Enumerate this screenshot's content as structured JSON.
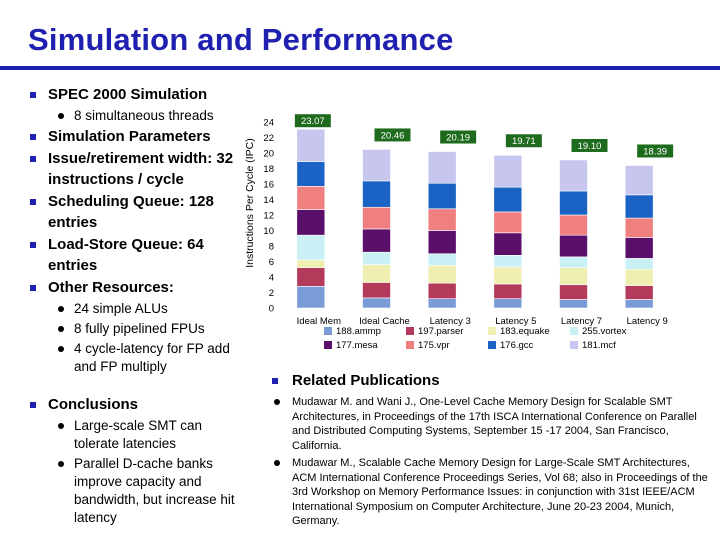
{
  "slide": {
    "title": "Simulation and Performance"
  },
  "left_bullets": [
    {
      "level": 1,
      "text": "SPEC 2000 Simulation"
    },
    {
      "level": 2,
      "text": "8 simultaneous threads"
    },
    {
      "level": 1,
      "text": "Simulation Parameters"
    },
    {
      "level": 1,
      "text": "Issue/retirement width: 32 instructions / cycle"
    },
    {
      "level": 1,
      "text": "Scheduling Queue: 128 entries"
    },
    {
      "level": 1,
      "text": "Load-Store Queue: 64 entries"
    },
    {
      "level": 1,
      "text": "Other Resources:"
    },
    {
      "level": 2,
      "text": "24 simple ALUs"
    },
    {
      "level": 2,
      "text": "8 fully pipelined FPUs"
    },
    {
      "level": 2,
      "text": "4 cycle-latency for FP add and FP multiply"
    },
    {
      "level": 1,
      "text": "Conclusions"
    },
    {
      "level": 2,
      "text": "Large-scale SMT can tolerate latencies"
    },
    {
      "level": 2,
      "text": "Parallel D-cache banks improve capacity and bandwidth, but increase hit latency"
    }
  ],
  "publications": {
    "heading": "Related Publications",
    "items": [
      "Mudawar M. and Wani J., One-Level Cache Memory Design for Scalable SMT Architectures, in Proceedings of the 17th ISCA International Conference on Parallel and Distributed Computing Systems, September 15 -17 2004, San Francisco, California.",
      "Mudawar M., Scalable Cache Memory Design for Large-Scale SMT Architectures, ACM International Conference Proceedings Series, Vol 68; also in Proceedings of the 3rd Workshop on Memory Performance Issues: in conjunction with 31st IEEE/ACM International Symposium on Computer Architecture, June 20-23 2004, Munich, Germany."
    ]
  },
  "colors": {
    "title": "#1f1fb0",
    "bullet": "#1f1fb0",
    "total_label_bg": "#1e6b1e",
    "series": [
      "#7a9cd6",
      "#b33a5a",
      "#f0efb2",
      "#c8f0f5",
      "#5a0f6a",
      "#f08080",
      "#1a63c4",
      "#c6c6ef"
    ]
  },
  "chart_data": {
    "type": "bar",
    "stacked": true,
    "ylabel": "Instructions Per Cycle (IPC)",
    "ylim": [
      0,
      24
    ],
    "yticks": [
      0,
      2,
      4,
      6,
      8,
      10,
      12,
      14,
      16,
      18,
      20,
      22,
      24
    ],
    "grid": false,
    "legend_position": "bottom",
    "categories": [
      "Ideal Mem",
      "Ideal Cache",
      "Latency 3",
      "Latency 5",
      "Latency 7",
      "Latency 9"
    ],
    "totals": [
      "23.07",
      "20.46",
      "20.19",
      "19.71",
      "19.10",
      "18.39"
    ],
    "series": [
      {
        "name": "188.ammp",
        "values": [
          2.8,
          1.3,
          1.2,
          1.2,
          1.1,
          1.1
        ]
      },
      {
        "name": "197.parser",
        "values": [
          2.4,
          2.0,
          2.0,
          1.9,
          1.9,
          1.8
        ]
      },
      {
        "name": "183.equake",
        "values": [
          1.0,
          2.3,
          2.3,
          2.2,
          2.2,
          2.1
        ]
      },
      {
        "name": "255.vortex",
        "values": [
          3.2,
          1.6,
          1.5,
          1.5,
          1.4,
          1.4
        ]
      },
      {
        "name": "177.mesa",
        "values": [
          3.3,
          3.0,
          3.0,
          2.9,
          2.8,
          2.7
        ]
      },
      {
        "name": "175.vpr",
        "values": [
          3.0,
          2.8,
          2.8,
          2.7,
          2.6,
          2.5
        ]
      },
      {
        "name": "176.gcc",
        "values": [
          3.2,
          3.4,
          3.3,
          3.2,
          3.1,
          3.0
        ]
      },
      {
        "name": "181.mcf",
        "values": [
          4.17,
          4.06,
          4.09,
          4.11,
          4.0,
          3.79
        ]
      }
    ]
  }
}
